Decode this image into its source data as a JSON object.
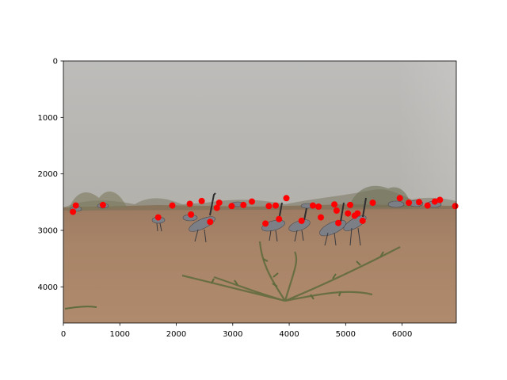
{
  "figure": {
    "background": "#ffffff"
  },
  "chart_data": {
    "type": "scatter",
    "title": "",
    "xlabel": "",
    "ylabel": "",
    "xlim": [
      0,
      6960
    ],
    "ylim": [
      4640,
      0
    ],
    "y_inverted": true,
    "grid": false,
    "legend": "none",
    "background_image": "photograph of a flock of grey demoiselle cranes standing on dry reddish desert ground with sparse shrubs under a hazy grey sky",
    "x_ticks": [
      0,
      1000,
      2000,
      3000,
      4000,
      5000,
      6000
    ],
    "x_tick_labels": [
      "0",
      "1000",
      "2000",
      "3000",
      "4000",
      "5000",
      "6000"
    ],
    "y_ticks": [
      0,
      1000,
      2000,
      3000,
      4000
    ],
    "y_tick_labels": [
      "0",
      "1000",
      "2000",
      "3000",
      "4000"
    ],
    "marker_color": "#ff0000",
    "points": [
      {
        "x": 170,
        "y": 2670
      },
      {
        "x": 220,
        "y": 2560
      },
      {
        "x": 700,
        "y": 2550
      },
      {
        "x": 1680,
        "y": 2770
      },
      {
        "x": 1930,
        "y": 2560
      },
      {
        "x": 2240,
        "y": 2530
      },
      {
        "x": 2260,
        "y": 2720
      },
      {
        "x": 2450,
        "y": 2480
      },
      {
        "x": 2600,
        "y": 2850
      },
      {
        "x": 2720,
        "y": 2600
      },
      {
        "x": 2760,
        "y": 2510
      },
      {
        "x": 2980,
        "y": 2570
      },
      {
        "x": 3190,
        "y": 2550
      },
      {
        "x": 3340,
        "y": 2490
      },
      {
        "x": 3580,
        "y": 2880
      },
      {
        "x": 3640,
        "y": 2570
      },
      {
        "x": 3760,
        "y": 2560
      },
      {
        "x": 3820,
        "y": 2800
      },
      {
        "x": 3950,
        "y": 2430
      },
      {
        "x": 4220,
        "y": 2830
      },
      {
        "x": 4420,
        "y": 2560
      },
      {
        "x": 4520,
        "y": 2580
      },
      {
        "x": 4560,
        "y": 2770
      },
      {
        "x": 4800,
        "y": 2540
      },
      {
        "x": 4840,
        "y": 2650
      },
      {
        "x": 4870,
        "y": 2870
      },
      {
        "x": 5040,
        "y": 2700
      },
      {
        "x": 5080,
        "y": 2550
      },
      {
        "x": 5160,
        "y": 2740
      },
      {
        "x": 5210,
        "y": 2700
      },
      {
        "x": 5300,
        "y": 2830
      },
      {
        "x": 5480,
        "y": 2510
      },
      {
        "x": 5960,
        "y": 2430
      },
      {
        "x": 6120,
        "y": 2510
      },
      {
        "x": 6300,
        "y": 2500
      },
      {
        "x": 6450,
        "y": 2560
      },
      {
        "x": 6580,
        "y": 2490
      },
      {
        "x": 6670,
        "y": 2460
      },
      {
        "x": 6940,
        "y": 2570
      }
    ]
  }
}
